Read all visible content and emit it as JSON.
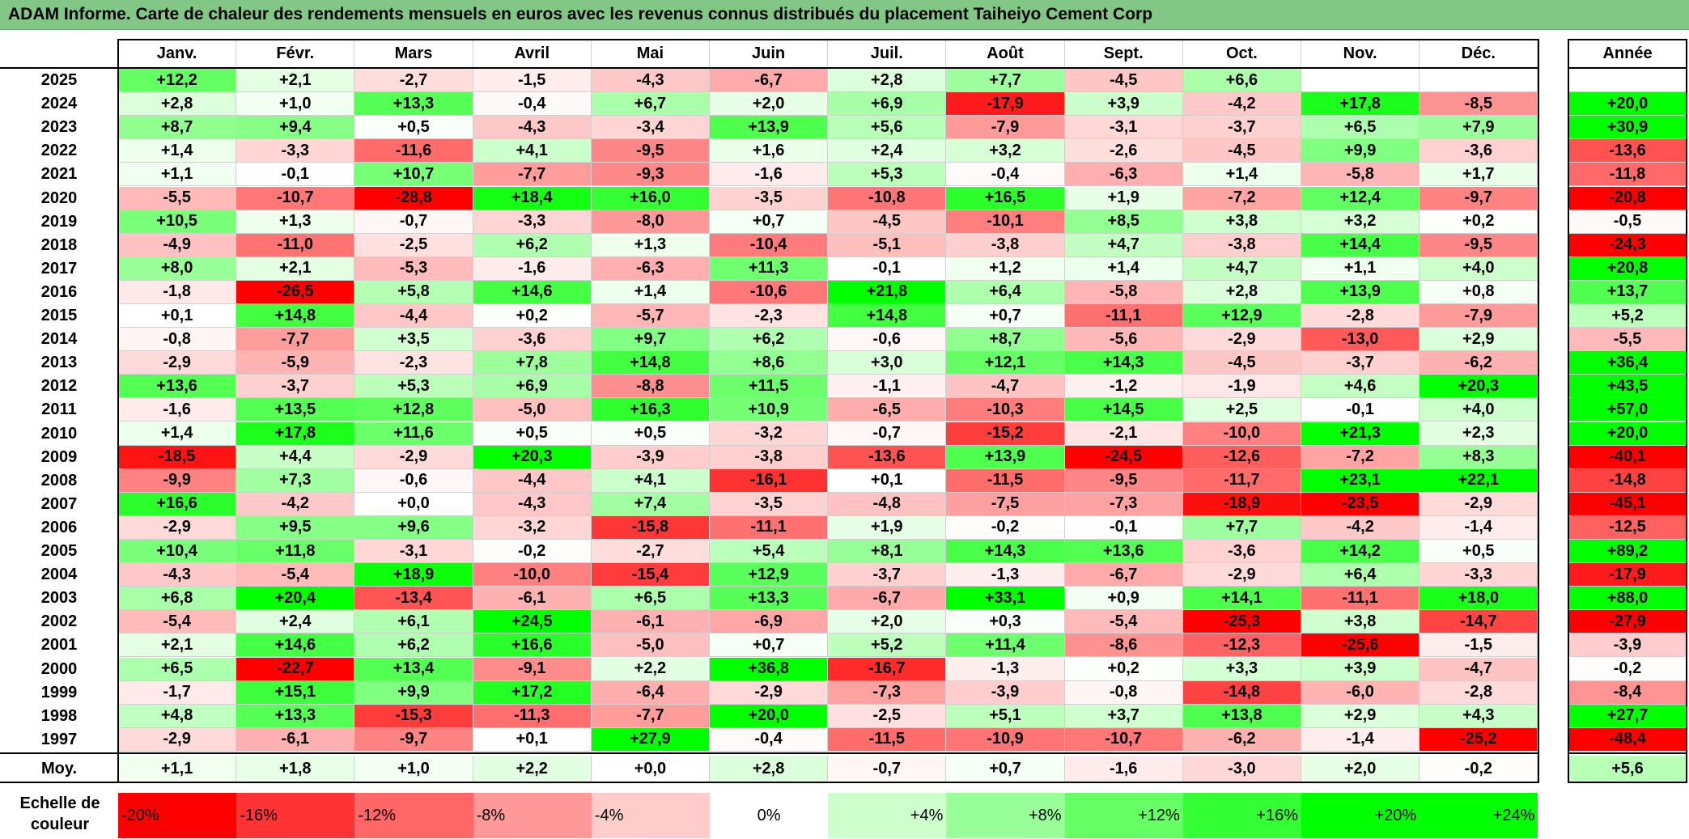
{
  "title": "ADAM Informe. Carte de chaleur des rendements mensuels en euros avec les revenus connus distribués du placement Taiheiyo Cement Corp",
  "chart_data": {
    "type": "heatmap",
    "columns": [
      "Janv.",
      "Févr.",
      "Mars",
      "Avril",
      "Mai",
      "Juin",
      "Juil.",
      "Août",
      "Sept.",
      "Oct.",
      "Nov.",
      "Déc."
    ],
    "annual_header": "Année",
    "rows": [
      {
        "year": "2025",
        "values": [
          "+12,2",
          "+2,1",
          "-2,7",
          "-1,5",
          "-4,3",
          "-6,7",
          "+2,8",
          "+7,7",
          "-4,5",
          "+6,6",
          "",
          ""
        ],
        "annual": ""
      },
      {
        "year": "2024",
        "values": [
          "+2,8",
          "+1,0",
          "+13,3",
          "-0,4",
          "+6,7",
          "+2,0",
          "+6,9",
          "-17,9",
          "+3,9",
          "-4,2",
          "+17,8",
          "-8,5"
        ],
        "annual": "+20,0"
      },
      {
        "year": "2023",
        "values": [
          "+8,7",
          "+9,4",
          "+0,5",
          "-4,3",
          "-3,4",
          "+13,9",
          "+5,6",
          "-7,9",
          "-3,1",
          "-3,7",
          "+6,5",
          "+7,9"
        ],
        "annual": "+30,9"
      },
      {
        "year": "2022",
        "values": [
          "+1,4",
          "-3,3",
          "-11,6",
          "+4,1",
          "-9,5",
          "+1,6",
          "+2,4",
          "+3,2",
          "-2,6",
          "-4,5",
          "+9,9",
          "-3,6"
        ],
        "annual": "-13,6"
      },
      {
        "year": "2021",
        "values": [
          "+1,1",
          "-0,1",
          "+10,7",
          "-7,7",
          "-9,3",
          "-1,6",
          "+5,3",
          "-0,4",
          "-6,3",
          "+1,4",
          "-5,8",
          "+1,7"
        ],
        "annual": "-11,8"
      },
      {
        "year": "2020",
        "values": [
          "-5,5",
          "-10,7",
          "-28,8",
          "+18,4",
          "+16,0",
          "-3,5",
          "-10,8",
          "+16,5",
          "+1,9",
          "-7,2",
          "+12,4",
          "-9,7"
        ],
        "annual": "-20,8"
      },
      {
        "year": "2019",
        "values": [
          "+10,5",
          "+1,3",
          "-0,7",
          "-3,3",
          "-8,0",
          "+0,7",
          "-4,5",
          "-10,1",
          "+8,5",
          "+3,8",
          "+3,2",
          "+0,2"
        ],
        "annual": "-0,5"
      },
      {
        "year": "2018",
        "values": [
          "-4,9",
          "-11,0",
          "-2,5",
          "+6,2",
          "+1,3",
          "-10,4",
          "-5,1",
          "-3,8",
          "+4,7",
          "-3,8",
          "+14,4",
          "-9,5"
        ],
        "annual": "-24,3"
      },
      {
        "year": "2017",
        "values": [
          "+8,0",
          "+2,1",
          "-5,3",
          "-1,6",
          "-6,3",
          "+11,3",
          "-0,1",
          "+1,2",
          "+1,4",
          "+4,7",
          "+1,1",
          "+4,0"
        ],
        "annual": "+20,8"
      },
      {
        "year": "2016",
        "values": [
          "-1,8",
          "-26,5",
          "+5,8",
          "+14,6",
          "+1,4",
          "-10,6",
          "+21,8",
          "+6,4",
          "-5,8",
          "+2,8",
          "+13,9",
          "+0,8"
        ],
        "annual": "+13,7"
      },
      {
        "year": "2015",
        "values": [
          "+0,1",
          "+14,8",
          "-4,4",
          "+0,2",
          "-5,7",
          "-2,3",
          "+14,8",
          "+0,7",
          "-11,1",
          "+12,9",
          "-2,8",
          "-7,9"
        ],
        "annual": "+5,2"
      },
      {
        "year": "2014",
        "values": [
          "-0,8",
          "-7,7",
          "+3,5",
          "-3,6",
          "+9,7",
          "+6,2",
          "-0,6",
          "+8,7",
          "-5,6",
          "-2,9",
          "-13,0",
          "+2,9"
        ],
        "annual": "-5,5"
      },
      {
        "year": "2013",
        "values": [
          "-2,9",
          "-5,9",
          "-2,3",
          "+7,8",
          "+14,8",
          "+8,6",
          "+3,0",
          "+12,1",
          "+14,3",
          "-4,5",
          "-3,7",
          "-6,2"
        ],
        "annual": "+36,4"
      },
      {
        "year": "2012",
        "values": [
          "+13,6",
          "-3,7",
          "+5,3",
          "+6,9",
          "-8,8",
          "+11,5",
          "-1,1",
          "-4,7",
          "-1,2",
          "-1,9",
          "+4,6",
          "+20,3"
        ],
        "annual": "+43,5"
      },
      {
        "year": "2011",
        "values": [
          "-1,6",
          "+13,5",
          "+12,8",
          "-5,0",
          "+16,3",
          "+10,9",
          "-6,5",
          "-10,3",
          "+14,5",
          "+2,5",
          "-0,1",
          "+4,0"
        ],
        "annual": "+57,0"
      },
      {
        "year": "2010",
        "values": [
          "+1,4",
          "+17,8",
          "+11,6",
          "+0,5",
          "+0,5",
          "-3,2",
          "-0,7",
          "-15,2",
          "-2,1",
          "-10,0",
          "+21,3",
          "+2,3"
        ],
        "annual": "+20,0"
      },
      {
        "year": "2009",
        "values": [
          "-18,5",
          "+4,4",
          "-2,9",
          "+20,3",
          "-3,9",
          "-3,8",
          "-13,6",
          "+13,9",
          "-24,5",
          "-12,6",
          "-7,2",
          "+8,3"
        ],
        "annual": "-40,1"
      },
      {
        "year": "2008",
        "values": [
          "-9,9",
          "+7,3",
          "-0,6",
          "-4,4",
          "+4,1",
          "-16,1",
          "+0,1",
          "-11,5",
          "-9,5",
          "-11,7",
          "+23,1",
          "+22,1"
        ],
        "annual": "-14,8"
      },
      {
        "year": "2007",
        "values": [
          "+16,6",
          "-4,2",
          "+0,0",
          "-4,3",
          "+7,4",
          "-3,5",
          "-4,8",
          "-7,5",
          "-7,3",
          "-18,9",
          "-23,5",
          "-2,9"
        ],
        "annual": "-45,1"
      },
      {
        "year": "2006",
        "values": [
          "-2,9",
          "+9,5",
          "+9,6",
          "-3,2",
          "-15,8",
          "-11,1",
          "+1,9",
          "-0,2",
          "-0,1",
          "+7,7",
          "-4,2",
          "-1,4"
        ],
        "annual": "-12,5"
      },
      {
        "year": "2005",
        "values": [
          "+10,4",
          "+11,8",
          "-3,1",
          "-0,2",
          "-2,7",
          "+5,4",
          "+8,1",
          "+14,3",
          "+13,6",
          "-3,6",
          "+14,2",
          "+0,5"
        ],
        "annual": "+89,2"
      },
      {
        "year": "2004",
        "values": [
          "-4,3",
          "-5,4",
          "+18,9",
          "-10,0",
          "-15,4",
          "+12,9",
          "-3,7",
          "-1,3",
          "-6,7",
          "-2,9",
          "+6,4",
          "-3,3"
        ],
        "annual": "-17,9"
      },
      {
        "year": "2003",
        "values": [
          "+6,8",
          "+20,4",
          "-13,4",
          "-6,1",
          "+6,5",
          "+13,3",
          "-6,7",
          "+33,1",
          "+0,9",
          "+14,1",
          "-11,1",
          "+18,0"
        ],
        "annual": "+88,0"
      },
      {
        "year": "2002",
        "values": [
          "-5,4",
          "+2,4",
          "+6,1",
          "+24,5",
          "-6,1",
          "-6,9",
          "+2,0",
          "+0,3",
          "-5,4",
          "-25,3",
          "+3,8",
          "-14,7"
        ],
        "annual": "-27,9"
      },
      {
        "year": "2001",
        "values": [
          "+2,1",
          "+14,6",
          "+6,2",
          "+16,6",
          "-5,0",
          "+0,7",
          "+5,2",
          "+11,4",
          "-8,6",
          "-12,3",
          "-25,6",
          "-1,5"
        ],
        "annual": "-3,9"
      },
      {
        "year": "2000",
        "values": [
          "+6,5",
          "-22,7",
          "+13,4",
          "-9,1",
          "+2,2",
          "+36,8",
          "-16,7",
          "-1,3",
          "+0,2",
          "+3,3",
          "+3,9",
          "-4,7"
        ],
        "annual": "-0,2"
      },
      {
        "year": "1999",
        "values": [
          "-1,7",
          "+15,1",
          "+9,9",
          "+17,2",
          "-6,4",
          "-2,9",
          "-7,3",
          "-3,9",
          "-0,8",
          "-14,8",
          "-6,0",
          "-2,8"
        ],
        "annual": "-8,4"
      },
      {
        "year": "1998",
        "values": [
          "+4,8",
          "+13,3",
          "-15,3",
          "-11,3",
          "-7,7",
          "+20,0",
          "-2,5",
          "+5,1",
          "+3,7",
          "+13,8",
          "+2,9",
          "+4,3"
        ],
        "annual": "+27,7"
      },
      {
        "year": "1997",
        "values": [
          "-2,9",
          "-6,1",
          "-9,7",
          "+0,1",
          "+27,9",
          "-0,4",
          "-11,5",
          "-10,9",
          "-10,7",
          "-6,2",
          "-1,4",
          "-25,2"
        ],
        "annual": "-48,4"
      }
    ],
    "average": {
      "label": "Moy.",
      "values": [
        "+1,1",
        "+1,8",
        "+1,0",
        "+2,2",
        "+0,0",
        "+2,8",
        "-0,7",
        "+0,7",
        "-1,6",
        "-3,0",
        "+2,0",
        "-0,2"
      ],
      "annual": "+5,6"
    },
    "scale": {
      "label": "Echelle de couleur",
      "stops": [
        {
          "label": "-20%",
          "value": -20
        },
        {
          "label": "-16%",
          "value": -16
        },
        {
          "label": "-12%",
          "value": -12
        },
        {
          "label": "-8%",
          "value": -8
        },
        {
          "label": "-4%",
          "value": -4
        },
        {
          "label": "0%",
          "value": 0
        },
        {
          "label": "+4%",
          "value": 4
        },
        {
          "label": "+8%",
          "value": 8
        },
        {
          "label": "+12%",
          "value": 12
        },
        {
          "label": "+16%",
          "value": 16
        },
        {
          "label": "+20%",
          "value": 20
        },
        {
          "label": "+24%",
          "value": 24
        }
      ]
    },
    "colors": {
      "negative": "#ff0000",
      "neutral": "#ffffff",
      "positive": "#00ff00"
    }
  }
}
